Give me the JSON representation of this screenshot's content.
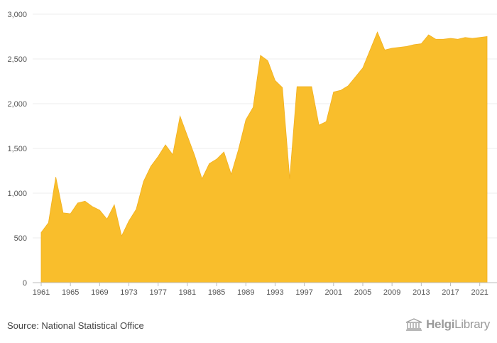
{
  "chart_data": {
    "type": "area",
    "color": "#F9BE2C",
    "ylim": [
      0,
      3000
    ],
    "yticks": [
      0,
      500,
      1000,
      1500,
      2000,
      2500,
      3000
    ],
    "ytick_labels": [
      "0",
      "500",
      "1,000",
      "1,500",
      "2,000",
      "2,500",
      "3,000"
    ],
    "xlim": [
      1961,
      2022
    ],
    "xticks": [
      1961,
      1965,
      1969,
      1973,
      1977,
      1981,
      1985,
      1989,
      1993,
      1997,
      2001,
      2005,
      2009,
      2013,
      2017,
      2021
    ],
    "grid": true,
    "x": [
      1961,
      1962,
      1963,
      1964,
      1965,
      1966,
      1967,
      1968,
      1969,
      1970,
      1971,
      1972,
      1973,
      1974,
      1975,
      1976,
      1977,
      1978,
      1979,
      1980,
      1981,
      1982,
      1983,
      1984,
      1985,
      1986,
      1987,
      1988,
      1989,
      1990,
      1991,
      1992,
      1993,
      1994,
      1995,
      1996,
      1997,
      1998,
      1999,
      2000,
      2001,
      2002,
      2003,
      2004,
      2005,
      2006,
      2007,
      2008,
      2009,
      2010,
      2011,
      2012,
      2013,
      2014,
      2015,
      2016,
      2017,
      2018,
      2019,
      2020,
      2021,
      2022
    ],
    "y": [
      560,
      670,
      1180,
      780,
      770,
      890,
      910,
      850,
      810,
      710,
      870,
      520,
      690,
      820,
      1130,
      1300,
      1410,
      1540,
      1430,
      1860,
      1640,
      1420,
      1160,
      1330,
      1380,
      1460,
      1210,
      1490,
      1820,
      1960,
      2540,
      2480,
      2260,
      2180,
      1160,
      2190,
      2190,
      2190,
      1760,
      1800,
      2130,
      2150,
      2200,
      2300,
      2400,
      2600,
      2800,
      2600,
      2620,
      2630,
      2640,
      2660,
      2670,
      2770,
      2720,
      2720,
      2730,
      2720,
      2740,
      2730,
      2740,
      2750
    ]
  },
  "footer": {
    "source": "Source: National Statistical Office",
    "logo_text_bold": "Helgi",
    "logo_text": "Library"
  }
}
